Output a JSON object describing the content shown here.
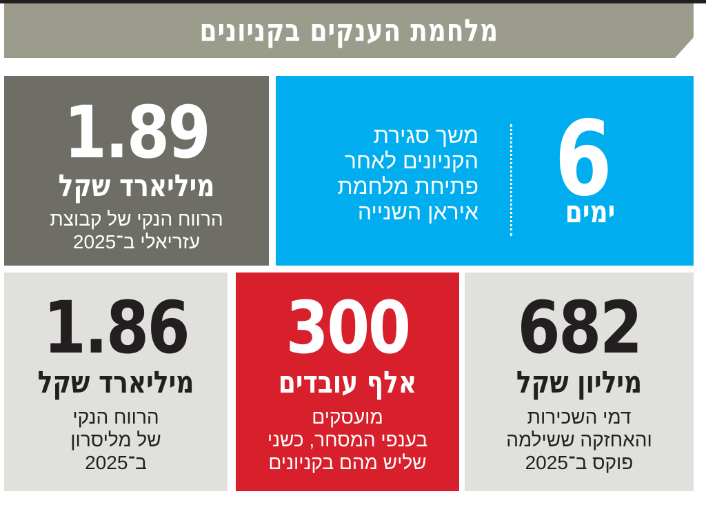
{
  "title": "מלחמת הענקים בקניונים",
  "colors": {
    "title_band": "#9c9c8c",
    "dark_box": "#6e6e66",
    "blue_box": "#00aeef",
    "red_box": "#d7202b",
    "light_box": "#e0e0dc"
  },
  "stats": {
    "azrieli": {
      "value": "1.89",
      "unit": "מיליארד שקל",
      "desc_lines": [
        "הרווח הנקי של קבוצת",
        "עזריאלי ב־2025"
      ]
    },
    "days": {
      "value": "6",
      "unit": "ימים",
      "desc_lines": [
        "משך סגירת",
        "הקניונים לאחר",
        "פתיחת מלחמת",
        "איראן השנייה"
      ]
    },
    "melisron": {
      "value": "1.86",
      "unit": "מיליארד שקל",
      "desc_lines": [
        "הרווח הנקי",
        "של מליסרון",
        "ב־2025"
      ]
    },
    "workers": {
      "value": "300",
      "unit": "אלף עובדים",
      "desc_lines": [
        "מועסקים",
        "בענפי המסחר, כשני",
        "שליש מהם בקניונים"
      ]
    },
    "fox": {
      "value": "682",
      "unit": "מיליון שקל",
      "desc_lines": [
        "דמי השכירות",
        "והאחזקה ששילמה",
        "פוקס ב־2025"
      ]
    }
  }
}
